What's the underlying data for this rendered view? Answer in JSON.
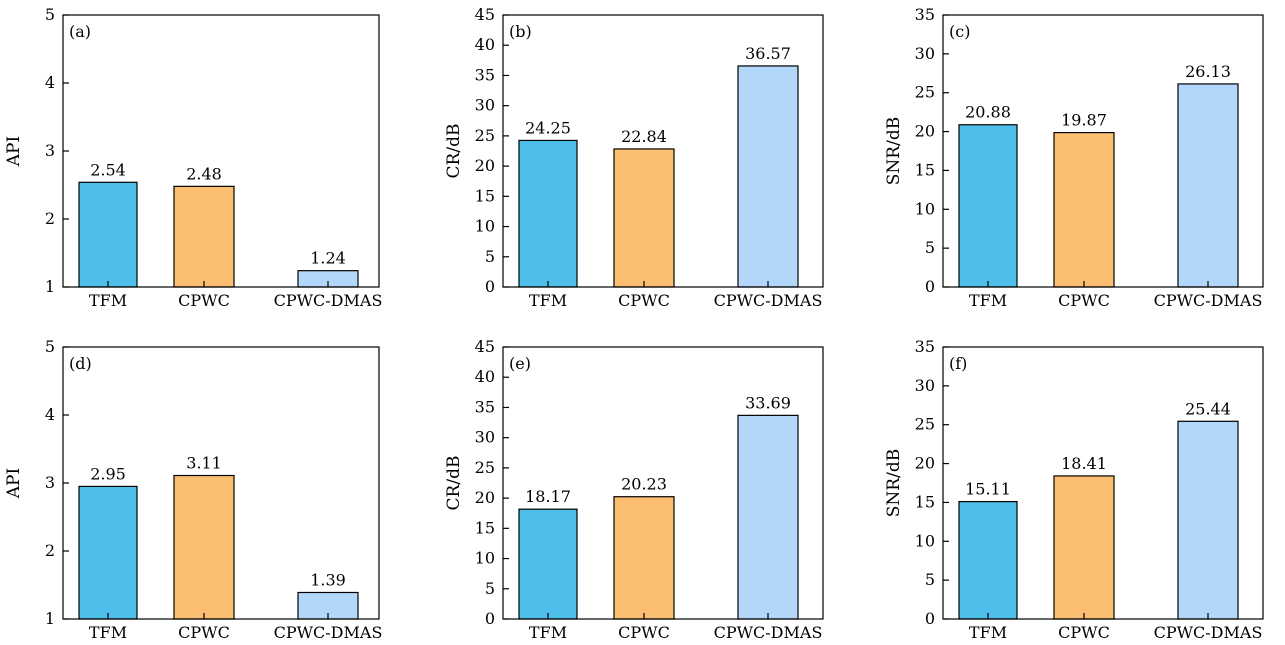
{
  "colors": {
    "TFM": "#4dbeea",
    "CPWC": "#fcbf72",
    "CPWC-DMAS": "#b3d7fb",
    "stroke": "#000000"
  },
  "chart_data": [
    {
      "panel": "(a)",
      "type": "bar",
      "categories": [
        "TFM",
        "CPWC",
        "CPWC-DMAS"
      ],
      "values": [
        2.54,
        2.48,
        1.24
      ],
      "value_labels": [
        "2.54",
        "2.48",
        "1.24"
      ],
      "ylabel": "API",
      "ylim": [
        1,
        5
      ],
      "yticks": [
        "1",
        "2",
        "3",
        "4",
        "5"
      ],
      "grid": false
    },
    {
      "panel": "(b)",
      "type": "bar",
      "categories": [
        "TFM",
        "CPWC",
        "CPWC-DMAS"
      ],
      "values": [
        24.25,
        22.84,
        36.57
      ],
      "value_labels": [
        "24.25",
        "22.84",
        "36.57"
      ],
      "ylabel": "CR/dB",
      "ylim": [
        0,
        45
      ],
      "yticks": [
        "0",
        "5",
        "10",
        "15",
        "20",
        "25",
        "30",
        "35",
        "40",
        "45"
      ],
      "grid": false
    },
    {
      "panel": "(c)",
      "type": "bar",
      "categories": [
        "TFM",
        "CPWC",
        "CPWC-DMAS"
      ],
      "values": [
        20.88,
        19.87,
        26.13
      ],
      "value_labels": [
        "20.88",
        "19.87",
        "26.13"
      ],
      "ylabel": "SNR/dB",
      "ylim": [
        0,
        35
      ],
      "yticks": [
        "0",
        "5",
        "10",
        "15",
        "20",
        "25",
        "30",
        "35"
      ],
      "grid": false
    },
    {
      "panel": "(d)",
      "type": "bar",
      "categories": [
        "TFM",
        "CPWC",
        "CPWC-DMAS"
      ],
      "values": [
        2.95,
        3.11,
        1.39
      ],
      "value_labels": [
        "2.95",
        "3.11",
        "1.39"
      ],
      "ylabel": "API",
      "ylim": [
        1,
        5
      ],
      "yticks": [
        "1",
        "2",
        "3",
        "4",
        "5"
      ],
      "grid": false
    },
    {
      "panel": "(e)",
      "type": "bar",
      "categories": [
        "TFM",
        "CPWC",
        "CPWC-DMAS"
      ],
      "values": [
        18.17,
        20.23,
        33.69
      ],
      "value_labels": [
        "18.17",
        "20.23",
        "33.69"
      ],
      "ylabel": "CR/dB",
      "ylim": [
        0,
        45
      ],
      "yticks": [
        "0",
        "5",
        "10",
        "15",
        "20",
        "25",
        "30",
        "35",
        "40",
        "45"
      ],
      "grid": false
    },
    {
      "panel": "(f)",
      "type": "bar",
      "categories": [
        "TFM",
        "CPWC",
        "CPWC-DMAS"
      ],
      "values": [
        15.11,
        18.41,
        25.44
      ],
      "value_labels": [
        "15.11",
        "18.41",
        "25.44"
      ],
      "ylabel": "SNR/dB",
      "ylim": [
        0,
        35
      ],
      "yticks": [
        "0",
        "5",
        "10",
        "15",
        "20",
        "25",
        "30",
        "35"
      ],
      "grid": false
    }
  ]
}
